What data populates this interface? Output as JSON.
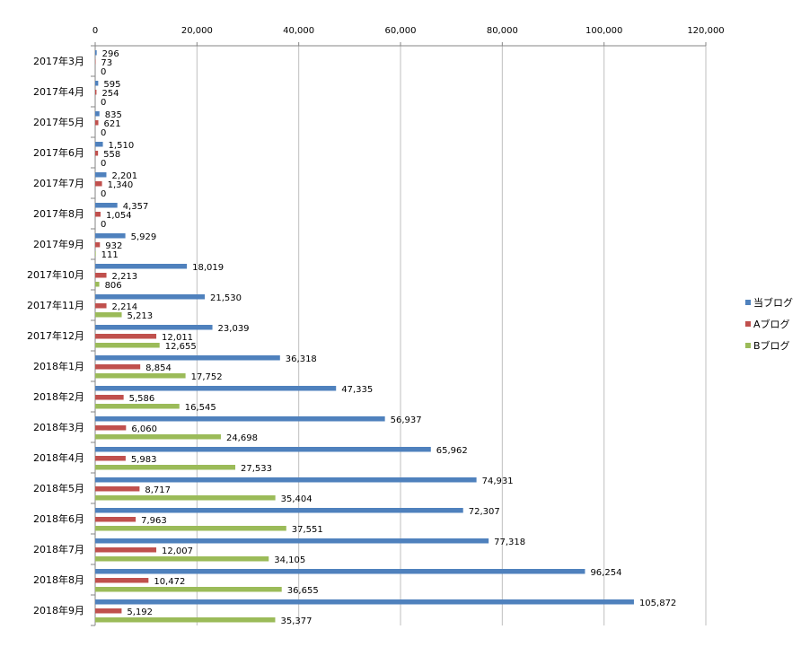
{
  "chart_data": {
    "type": "bar",
    "orientation": "horizontal",
    "title": "",
    "xlabel": "",
    "ylabel": "",
    "xlim": [
      0,
      120000
    ],
    "x_ticks": [
      0,
      20000,
      40000,
      60000,
      80000,
      100000,
      120000
    ],
    "x_tick_labels": [
      "0",
      "20,000",
      "40,000",
      "60,000",
      "80,000",
      "100,000",
      "120,000"
    ],
    "x_axis_position": "top",
    "grid": true,
    "legend_position": "right",
    "categories": [
      "2017年3月",
      "2017年4月",
      "2017年5月",
      "2017年6月",
      "2017年7月",
      "2017年8月",
      "2017年9月",
      "2017年10月",
      "2017年11月",
      "2017年12月",
      "2018年1月",
      "2018年2月",
      "2018年3月",
      "2018年4月",
      "2018年5月",
      "2018年6月",
      "2018年7月",
      "2018年8月",
      "2018年9月"
    ],
    "series": [
      {
        "name": "当ブログ",
        "color": "#4F81BD",
        "values": [
          296,
          595,
          835,
          1510,
          2201,
          4357,
          5929,
          18019,
          21530,
          23039,
          36318,
          47335,
          56937,
          65962,
          74931,
          72307,
          77318,
          96254,
          105872
        ],
        "labels": [
          "296",
          "595",
          "835",
          "1,510",
          "2,201",
          "4,357",
          "5,929",
          "18,019",
          "21,530",
          "23,039",
          "36,318",
          "47,335",
          "56,937",
          "65,962",
          "74,931",
          "72,307",
          "77,318",
          "96,254",
          "105,872"
        ]
      },
      {
        "name": "Aブログ",
        "color": "#C0504D",
        "values": [
          73,
          254,
          621,
          558,
          1340,
          1054,
          932,
          2213,
          2214,
          12011,
          8854,
          5586,
          6060,
          5983,
          8717,
          7963,
          12007,
          10472,
          5192
        ],
        "labels": [
          "73",
          "254",
          "621",
          "558",
          "1,340",
          "1,054",
          "932",
          "2,213",
          "2,214",
          "12,011",
          "8,854",
          "5,586",
          "6,060",
          "5,983",
          "8,717",
          "7,963",
          "12,007",
          "10,472",
          "5,192"
        ]
      },
      {
        "name": "Bブログ",
        "color": "#9BBB59",
        "values": [
          0,
          0,
          0,
          0,
          0,
          0,
          111,
          806,
          5213,
          12655,
          17752,
          16545,
          24698,
          27533,
          35404,
          37551,
          34105,
          36655,
          35377
        ],
        "labels": [
          "0",
          "0",
          "0",
          "0",
          "0",
          "0",
          "111",
          "806",
          "5,213",
          "12,655",
          "17,752",
          "16,545",
          "24,698",
          "27,533",
          "35,404",
          "37,551",
          "34,105",
          "36,655",
          "35,377"
        ]
      }
    ]
  }
}
